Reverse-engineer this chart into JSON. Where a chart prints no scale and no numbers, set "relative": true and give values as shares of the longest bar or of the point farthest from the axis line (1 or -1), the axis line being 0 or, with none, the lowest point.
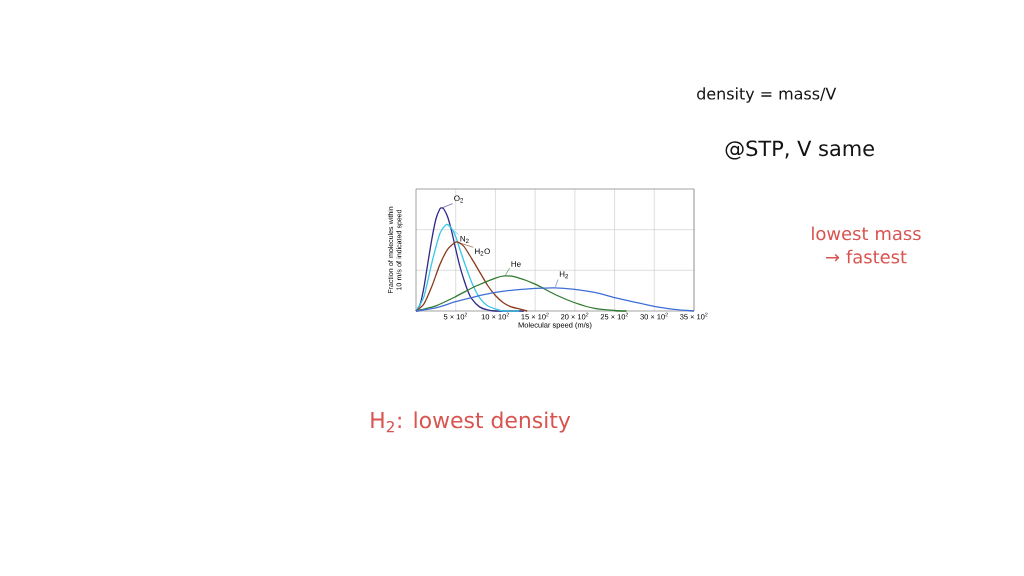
{
  "chart_data": {
    "type": "line",
    "xlabel": "Molecular speed (m/s)",
    "ylabel": "Fraction of molecules within 10 m/s of indicated speed",
    "xlim": [
      0,
      3500
    ],
    "xticks": [
      {
        "value": 500,
        "label": "5 × 10$^{2}$"
      },
      {
        "value": 1000,
        "label": "10 × 10$^{2}$"
      },
      {
        "value": 1500,
        "label": "15 × 10$^{2}$"
      },
      {
        "value": 2000,
        "label": "20 × 10$^{2}$"
      },
      {
        "value": 2500,
        "label": "25 × 10$^{2}$"
      },
      {
        "value": 3000,
        "label": "30 × 10$^{2}$"
      },
      {
        "value": 3500,
        "label": "35 × 10$^{2}$"
      }
    ],
    "relative": true,
    "grid": true,
    "series": [
      {
        "name": "O$_{2}$",
        "color": "#2e2a86",
        "x": [
          0,
          50,
          100,
          150,
          200,
          250,
          300,
          325,
          350,
          400,
          450,
          500,
          550,
          600,
          650,
          700,
          800,
          900,
          1000,
          1360
        ],
        "values": [
          0,
          0.06,
          0.23,
          0.47,
          0.7,
          0.89,
          0.99,
          1.0,
          0.99,
          0.91,
          0.77,
          0.6,
          0.44,
          0.31,
          0.2,
          0.12,
          0.04,
          0.01,
          0,
          0
        ]
      },
      {
        "name": "N$_{2}$",
        "color": "#38c6e8",
        "x": [
          0,
          100,
          200,
          300,
          386,
          450,
          500,
          600,
          700,
          800,
          900,
          1000,
          1100,
          1300
        ],
        "values": [
          0,
          0.14,
          0.47,
          0.75,
          0.84,
          0.8,
          0.72,
          0.49,
          0.28,
          0.13,
          0.05,
          0.02,
          0,
          0
        ]
      },
      {
        "name": "H$_{2}$O",
        "color": "#8a3b1e",
        "x": [
          0,
          100,
          200,
          300,
          400,
          508,
          600,
          700,
          800,
          900,
          1000,
          1100,
          1200,
          1300,
          1400
        ],
        "values": [
          0,
          0.07,
          0.24,
          0.45,
          0.6,
          0.67,
          0.63,
          0.51,
          0.38,
          0.25,
          0.15,
          0.08,
          0.04,
          0.02,
          0
        ]
      },
      {
        "name": "He",
        "color": "#2f7a2f",
        "x": [
          0,
          250,
          500,
          750,
          1000,
          1120,
          1250,
          1500,
          1750,
          2000,
          2250,
          2500,
          2650
        ],
        "values": [
          0,
          0.05,
          0.14,
          0.24,
          0.32,
          0.34,
          0.33,
          0.26,
          0.16,
          0.08,
          0.025,
          0.005,
          0
        ]
      },
      {
        "name": "H$_{2}$",
        "color": "#3f6fd6",
        "x": [
          0,
          250,
          500,
          750,
          1000,
          1250,
          1500,
          1750,
          2000,
          2250,
          2500,
          2750,
          3000,
          3250,
          3500
        ],
        "values": [
          0,
          0.03,
          0.09,
          0.14,
          0.18,
          0.205,
          0.22,
          0.225,
          0.21,
          0.18,
          0.13,
          0.085,
          0.045,
          0.015,
          0
        ]
      }
    ],
    "annotations": [
      "density = mass/V",
      "@STP, V same",
      "lowest mass → fastest",
      "H$_{2}$: lowest density"
    ]
  }
}
